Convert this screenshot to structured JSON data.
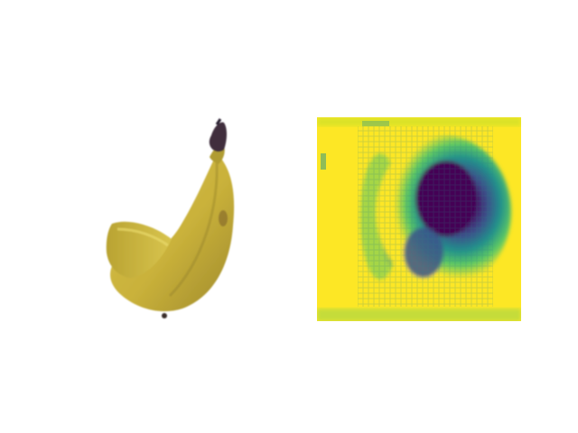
{
  "figure": {
    "panels": [
      {
        "id": "source-image",
        "subject": "banana",
        "caption": ""
      },
      {
        "id": "attention-heatmap",
        "colormap": "viridis",
        "caption": ""
      }
    ],
    "colors": {
      "background": "#ffffff",
      "banana_yellow": "#c9b13a",
      "banana_shadow": "#9f8a2c",
      "stem_dark": "#3f2f3c",
      "heat_high": "#fde725",
      "heat_mid": "#21918c",
      "heat_low": "#440154"
    }
  }
}
